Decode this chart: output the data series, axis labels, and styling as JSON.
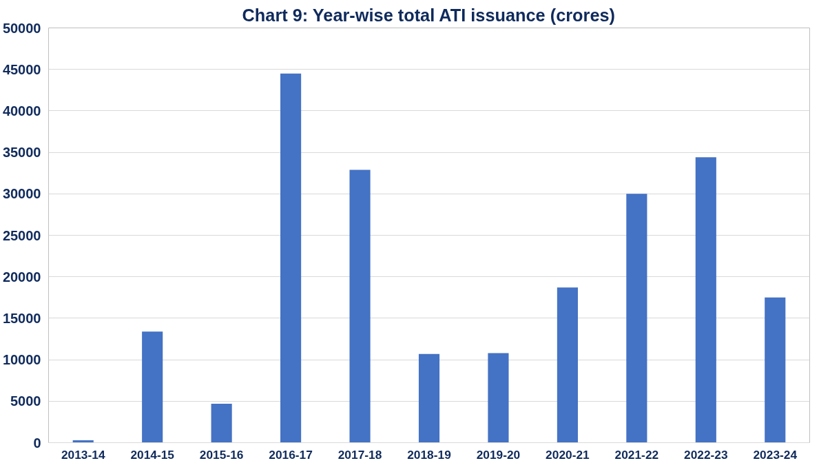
{
  "chart_data": {
    "type": "bar",
    "title": "Chart 9: Year-wise total ATI issuance (crores)",
    "categories": [
      "2013-14",
      "2014-15",
      "2015-16",
      "2016-17",
      "2017-18",
      "2018-19",
      "2019-20",
      "2020-21",
      "2021-22",
      "2022-23",
      "2023-24"
    ],
    "values": [
      300,
      13400,
      4700,
      44500,
      32900,
      10700,
      10800,
      18700,
      30000,
      34400,
      17500
    ],
    "color": "#4472c4",
    "ylim": [
      0,
      50000
    ],
    "yticks": [
      0,
      5000,
      10000,
      15000,
      20000,
      25000,
      30000,
      35000,
      40000,
      45000,
      50000
    ],
    "grid": "y"
  }
}
